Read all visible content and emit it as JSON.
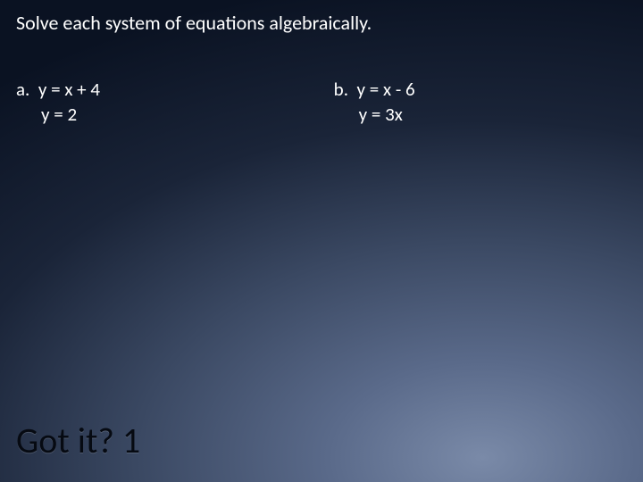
{
  "colors": {
    "text": "#ffffff",
    "heading_dark": "#060a12",
    "bg_inner": "#7a8aa8",
    "bg_mid": "#3a4862",
    "bg_outer": "#0a1222"
  },
  "typography": {
    "body_family": "Calibri, Segoe UI, Arial, sans-serif",
    "instruction_fontsize": 22,
    "problem_fontsize": 21,
    "heading_fontsize": 40
  },
  "instruction": "Solve each system of equations algebraically.",
  "problems": {
    "a": {
      "label": "a.",
      "eq1": "y = x + 4",
      "eq2": "y = 2"
    },
    "b": {
      "label": "b.",
      "eq1": "y = x - 6",
      "eq2": "y = 3x"
    }
  },
  "footer": "Got it? 1"
}
